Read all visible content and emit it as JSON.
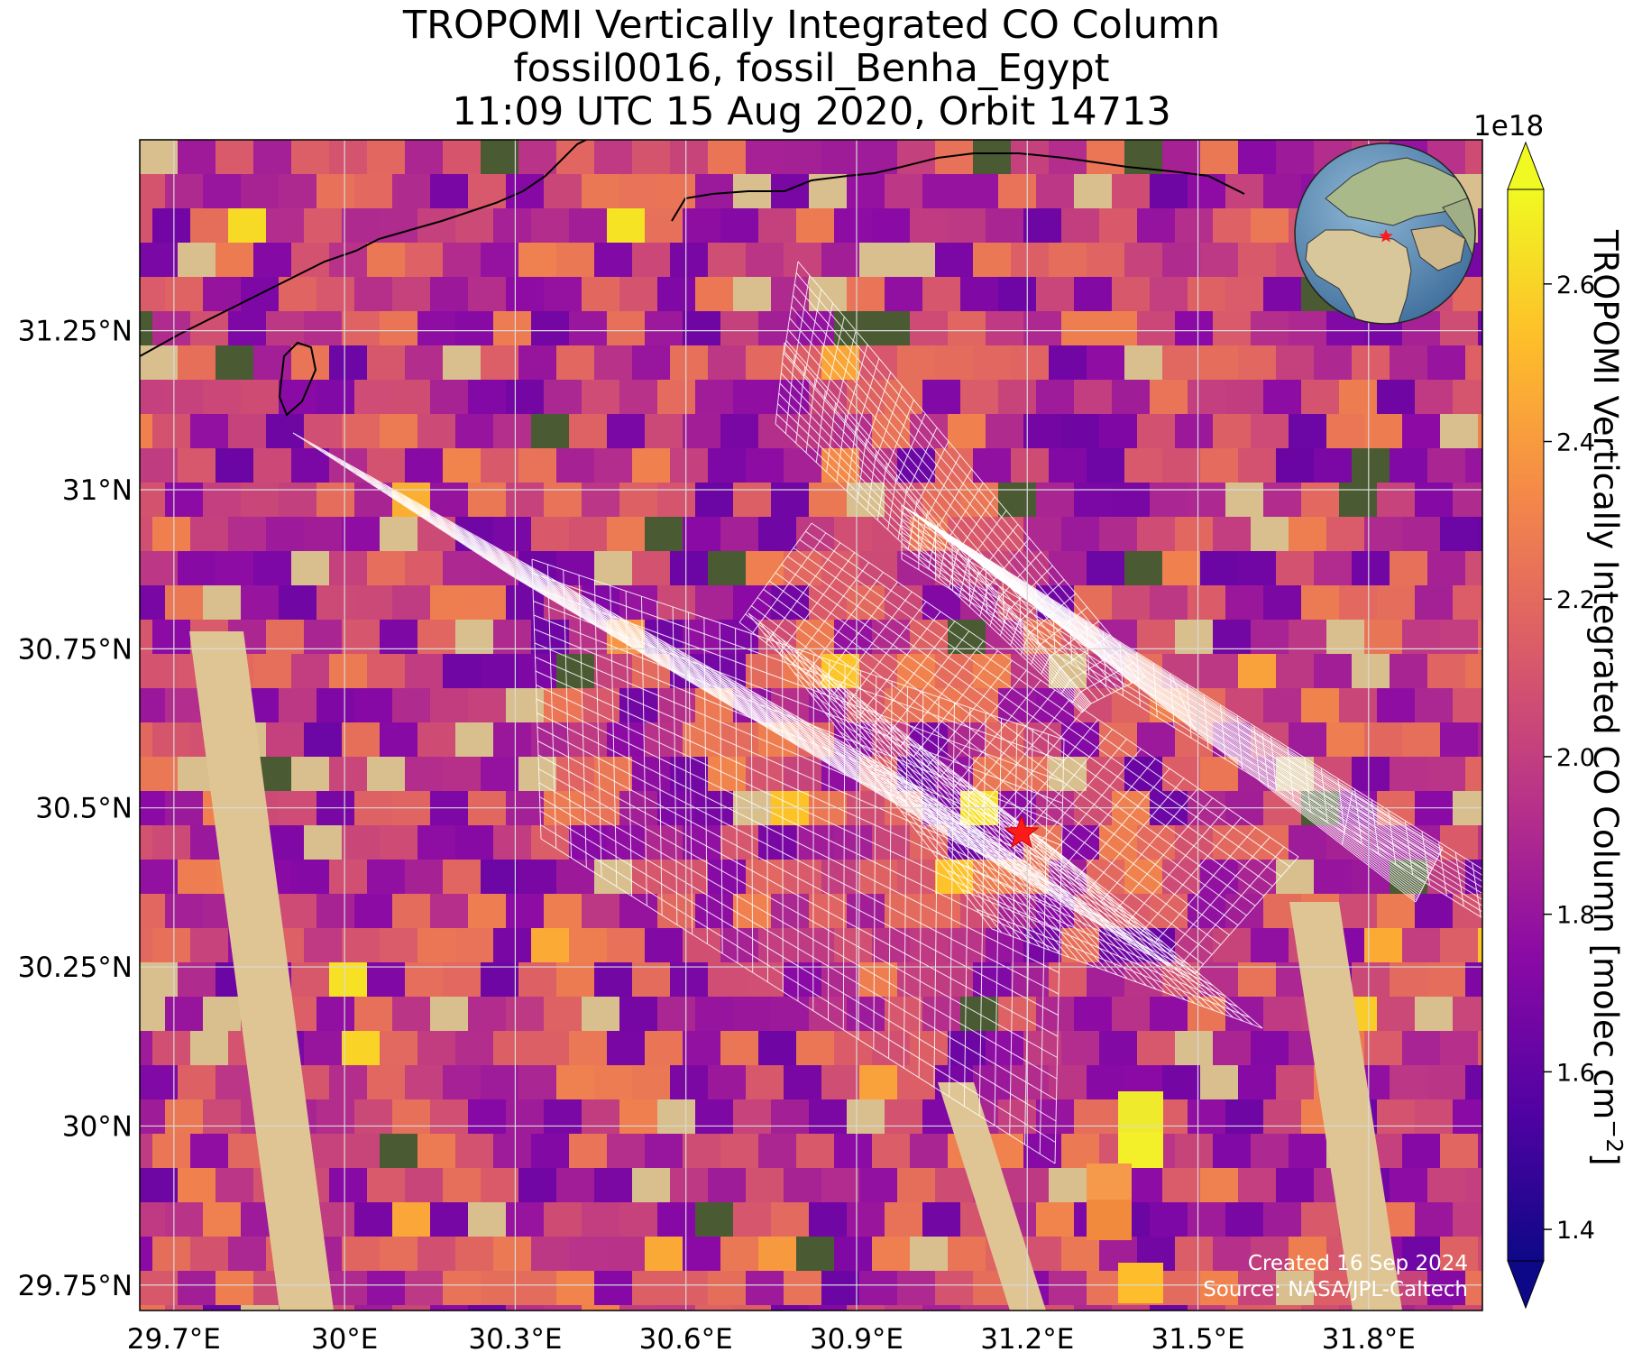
{
  "title": {
    "line1": "TROPOMI Vertically Integrated CO Column",
    "line2": "fossil0016, fossil_Benha_Egypt",
    "line3": "11:09 UTC 15 Aug 2020, Orbit 14713"
  },
  "map": {
    "lon_range": [
      29.64,
      32.0
    ],
    "lat_range": [
      29.71,
      31.55
    ],
    "lon_ticks": [
      {
        "value": 29.7,
        "label": "29.7°E"
      },
      {
        "value": 30.0,
        "label": "30°E"
      },
      {
        "value": 30.3,
        "label": "30.3°E"
      },
      {
        "value": 30.6,
        "label": "30.6°E"
      },
      {
        "value": 30.9,
        "label": "30.9°E"
      },
      {
        "value": 31.2,
        "label": "31.2°E"
      },
      {
        "value": 31.5,
        "label": "31.5°E"
      },
      {
        "value": 31.8,
        "label": "31.8°E"
      }
    ],
    "lat_ticks": [
      {
        "value": 31.25,
        "label": "31.25°N"
      },
      {
        "value": 31.0,
        "label": "31°N"
      },
      {
        "value": 30.75,
        "label": "30.75°N"
      },
      {
        "value": 30.5,
        "label": "30.5°N"
      },
      {
        "value": 30.25,
        "label": "30.25°N"
      },
      {
        "value": 30.0,
        "label": "30°N"
      },
      {
        "value": 29.75,
        "label": "29.75°N"
      }
    ],
    "gridlines": true,
    "site_marker": {
      "name": "fossil_Benha_Egypt",
      "lon": 31.19,
      "lat": 30.46,
      "color": "#ff0000"
    },
    "inset": "globe-locator (top-right)",
    "credits": {
      "line1": "Created 16 Sep 2024",
      "line2": "Source: NASA/JPL-Caltech"
    }
  },
  "colorbar": {
    "label": "TROPOMI Vertically Integrated CO Column [molec cm",
    "label_sup": "−2",
    "label_end": "]",
    "multiplier": "1e18",
    "range": [
      1.36,
      2.72
    ],
    "ticks": [
      {
        "value": 1.4,
        "label": "1.4"
      },
      {
        "value": 1.6,
        "label": "1.6"
      },
      {
        "value": 1.8,
        "label": "1.8"
      },
      {
        "value": 2.0,
        "label": "2.0"
      },
      {
        "value": 2.2,
        "label": "2.2"
      },
      {
        "value": 2.4,
        "label": "2.4"
      },
      {
        "value": 2.6,
        "label": "2.6"
      }
    ],
    "colormap": "plasma",
    "colors": [
      "#0d0887",
      "#5302a3",
      "#8b0aa5",
      "#b83289",
      "#db5c68",
      "#f48849",
      "#febd2a",
      "#f0f921"
    ],
    "extend": "both"
  }
}
